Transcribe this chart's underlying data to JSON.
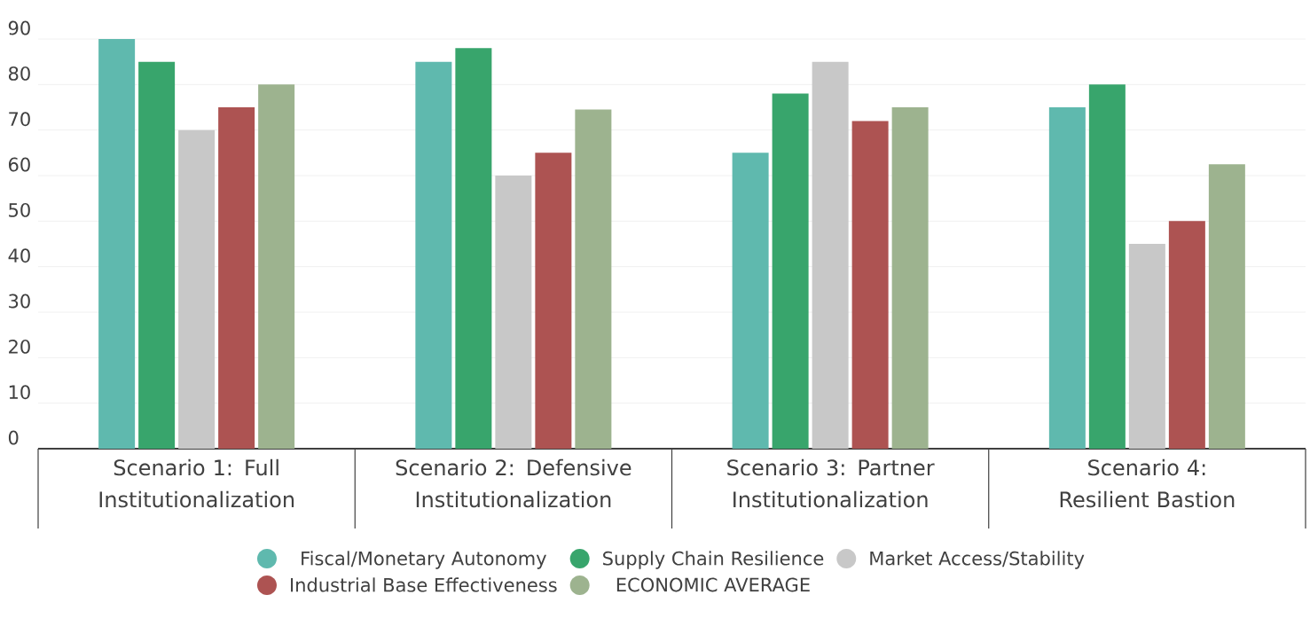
{
  "chart_data": {
    "type": "bar",
    "categories": [
      "Scenario 1: Full Institutionalization",
      "Scenario 2: Defensive Institutionalization",
      "Scenario 3: Partner Institutionalization",
      "Scenario 4: Resilient Bastion"
    ],
    "series": [
      {
        "name": "Fiscal/Monetary Autonomy",
        "color": "#5fb9ae",
        "values": [
          90,
          85,
          65,
          75
        ]
      },
      {
        "name": "Supply Chain Resilience",
        "color": "#38a56c",
        "values": [
          85,
          88,
          78,
          80
        ]
      },
      {
        "name": "Market Access/Stability",
        "color": "#c8c8c8",
        "values": [
          70,
          60,
          85,
          45
        ]
      },
      {
        "name": "Industrial Base Effectiveness",
        "color": "#ad5352",
        "values": [
          75,
          65,
          72,
          50
        ]
      },
      {
        "name": "ECONOMIC AVERAGE",
        "color": "#9db38f",
        "values": [
          80,
          74.5,
          75,
          62.5
        ]
      }
    ],
    "ylim": [
      0,
      90
    ],
    "yticks": [
      0,
      10,
      20,
      30,
      40,
      50,
      60,
      70,
      80,
      90
    ],
    "grid": "y",
    "legend": "bottom"
  }
}
